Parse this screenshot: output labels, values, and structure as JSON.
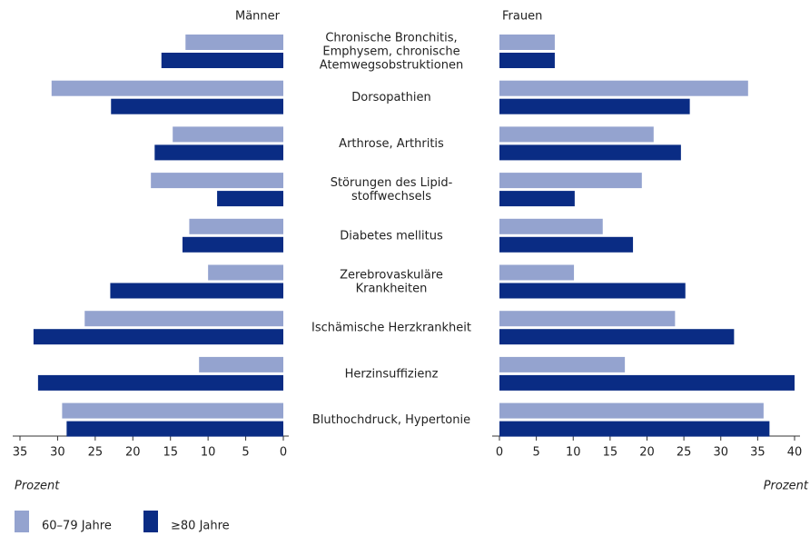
{
  "chart_data": [
    {
      "type": "bar",
      "orientation": "horizontal",
      "direction": "left",
      "title": "Männer",
      "x_label": "Prozent",
      "categories": [
        "Chronische Bronchitis,\nEmphysem, chronische\nAtemwegsobstruktionen",
        "Dorsopathien",
        "Arthrose, Arthritis",
        "Störungen des Lipid-\nstoffwechsels",
        "Diabetes mellitus",
        "Zerebrovaskuläre\nKrankheiten",
        "Ischämische Herzkrankheit",
        "Herzinsuffizienz",
        "Bluthochdruck, Hypertonie"
      ],
      "series": [
        {
          "name": "60–79 Jahre",
          "color": "#94a3cf",
          "values": [
            13.0,
            30.8,
            14.7,
            17.6,
            12.5,
            10.0,
            26.4,
            11.2,
            29.4
          ]
        },
        {
          "name": "≥80 Jahre",
          "color": "#0a2c84",
          "values": [
            16.2,
            22.9,
            17.1,
            8.8,
            13.4,
            23.0,
            33.2,
            32.6,
            28.8
          ]
        }
      ],
      "xlim": [
        0,
        35
      ],
      "xticks": [
        0,
        5,
        10,
        15,
        20,
        25,
        30,
        35
      ]
    },
    {
      "type": "bar",
      "orientation": "horizontal",
      "direction": "right",
      "title": "Frauen",
      "x_label": "Prozent",
      "series": [
        {
          "name": "60–79 Jahre",
          "color": "#94a3cf",
          "values": [
            7.5,
            33.7,
            20.9,
            19.3,
            14.0,
            10.1,
            23.8,
            17.0,
            35.8
          ]
        },
        {
          "name": "≥80 Jahre",
          "color": "#0a2c84",
          "values": [
            7.5,
            25.8,
            24.6,
            10.2,
            18.1,
            25.2,
            31.8,
            40.0,
            36.6
          ]
        }
      ],
      "xlim": [
        0,
        40
      ],
      "xticks": [
        0,
        5,
        10,
        15,
        20,
        25,
        30,
        35,
        40
      ]
    }
  ]
}
